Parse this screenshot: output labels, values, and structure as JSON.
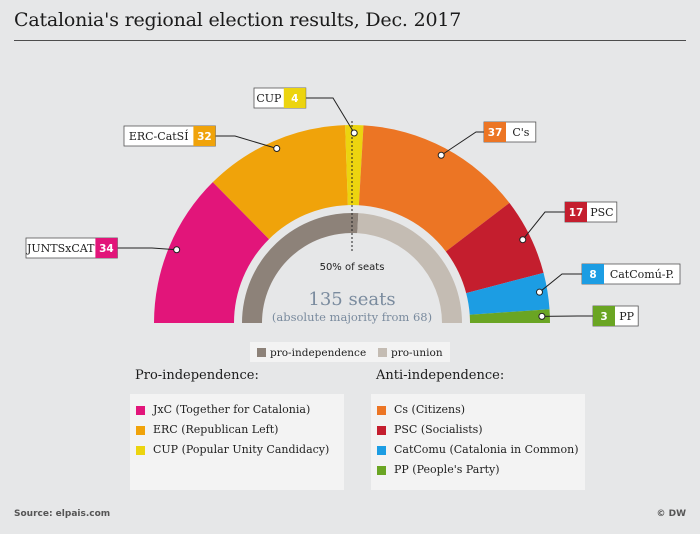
{
  "title": "Catalonia's regional election results, Dec. 2017",
  "source": "Source: elpais.com",
  "credit": "© DW",
  "colors": {
    "JxC": "#e2157a",
    "ERC": "#f0a30a",
    "CUP": "#ecd40f",
    "Cs": "#ec7524",
    "PSC": "#c41e2e",
    "CatComu": "#1c9de3",
    "PP": "#6aa523",
    "pro_independence": "#8d8279",
    "pro_union": "#c4bcb3"
  },
  "chart_data": {
    "type": "pie",
    "subtype": "half-donut parliament chart",
    "total_seats": 135,
    "slices": [
      {
        "key": "JxC",
        "label": "JUNTSxCAT",
        "seats": 34
      },
      {
        "key": "ERC",
        "label": "ERC-CatSÍ",
        "seats": 32
      },
      {
        "key": "CUP",
        "label": "CUP",
        "seats": 4
      },
      {
        "key": "Cs",
        "label": "C's",
        "seats": 37
      },
      {
        "key": "PSC",
        "label": "PSC",
        "seats": 17
      },
      {
        "key": "CatComu",
        "label": "CatComú-P.",
        "seats": 8
      },
      {
        "key": "PP",
        "label": "PP",
        "seats": 3
      }
    ],
    "blocs": [
      {
        "name": "pro-independence",
        "seats": 70
      },
      {
        "name": "pro-union",
        "seats": 65
      }
    ],
    "center_seats": "135 seats",
    "center_note": "(absolute majority from 68)",
    "half_label": "50% of seats"
  },
  "legend": {
    "pro_title": "Pro-independence:",
    "pro_items": [
      {
        "key": "JxC",
        "text": "JxC  (Together for Catalonia)"
      },
      {
        "key": "ERC",
        "text": "ERC (Republican Left)"
      },
      {
        "key": "CUP",
        "text": "CUP (Popular Unity Candidacy)"
      }
    ],
    "anti_title": "Anti-independence:",
    "anti_items": [
      {
        "key": "Cs",
        "text": "Cs (Citizens)"
      },
      {
        "key": "PSC",
        "text": "PSC (Socialists)"
      },
      {
        "key": "CatComu",
        "text": "CatComu (Catalonia in Common)"
      },
      {
        "key": "PP",
        "text": "PP (People's Party)"
      }
    ]
  },
  "bloc_legend": {
    "pro": "pro-independence",
    "union": "pro-union"
  }
}
